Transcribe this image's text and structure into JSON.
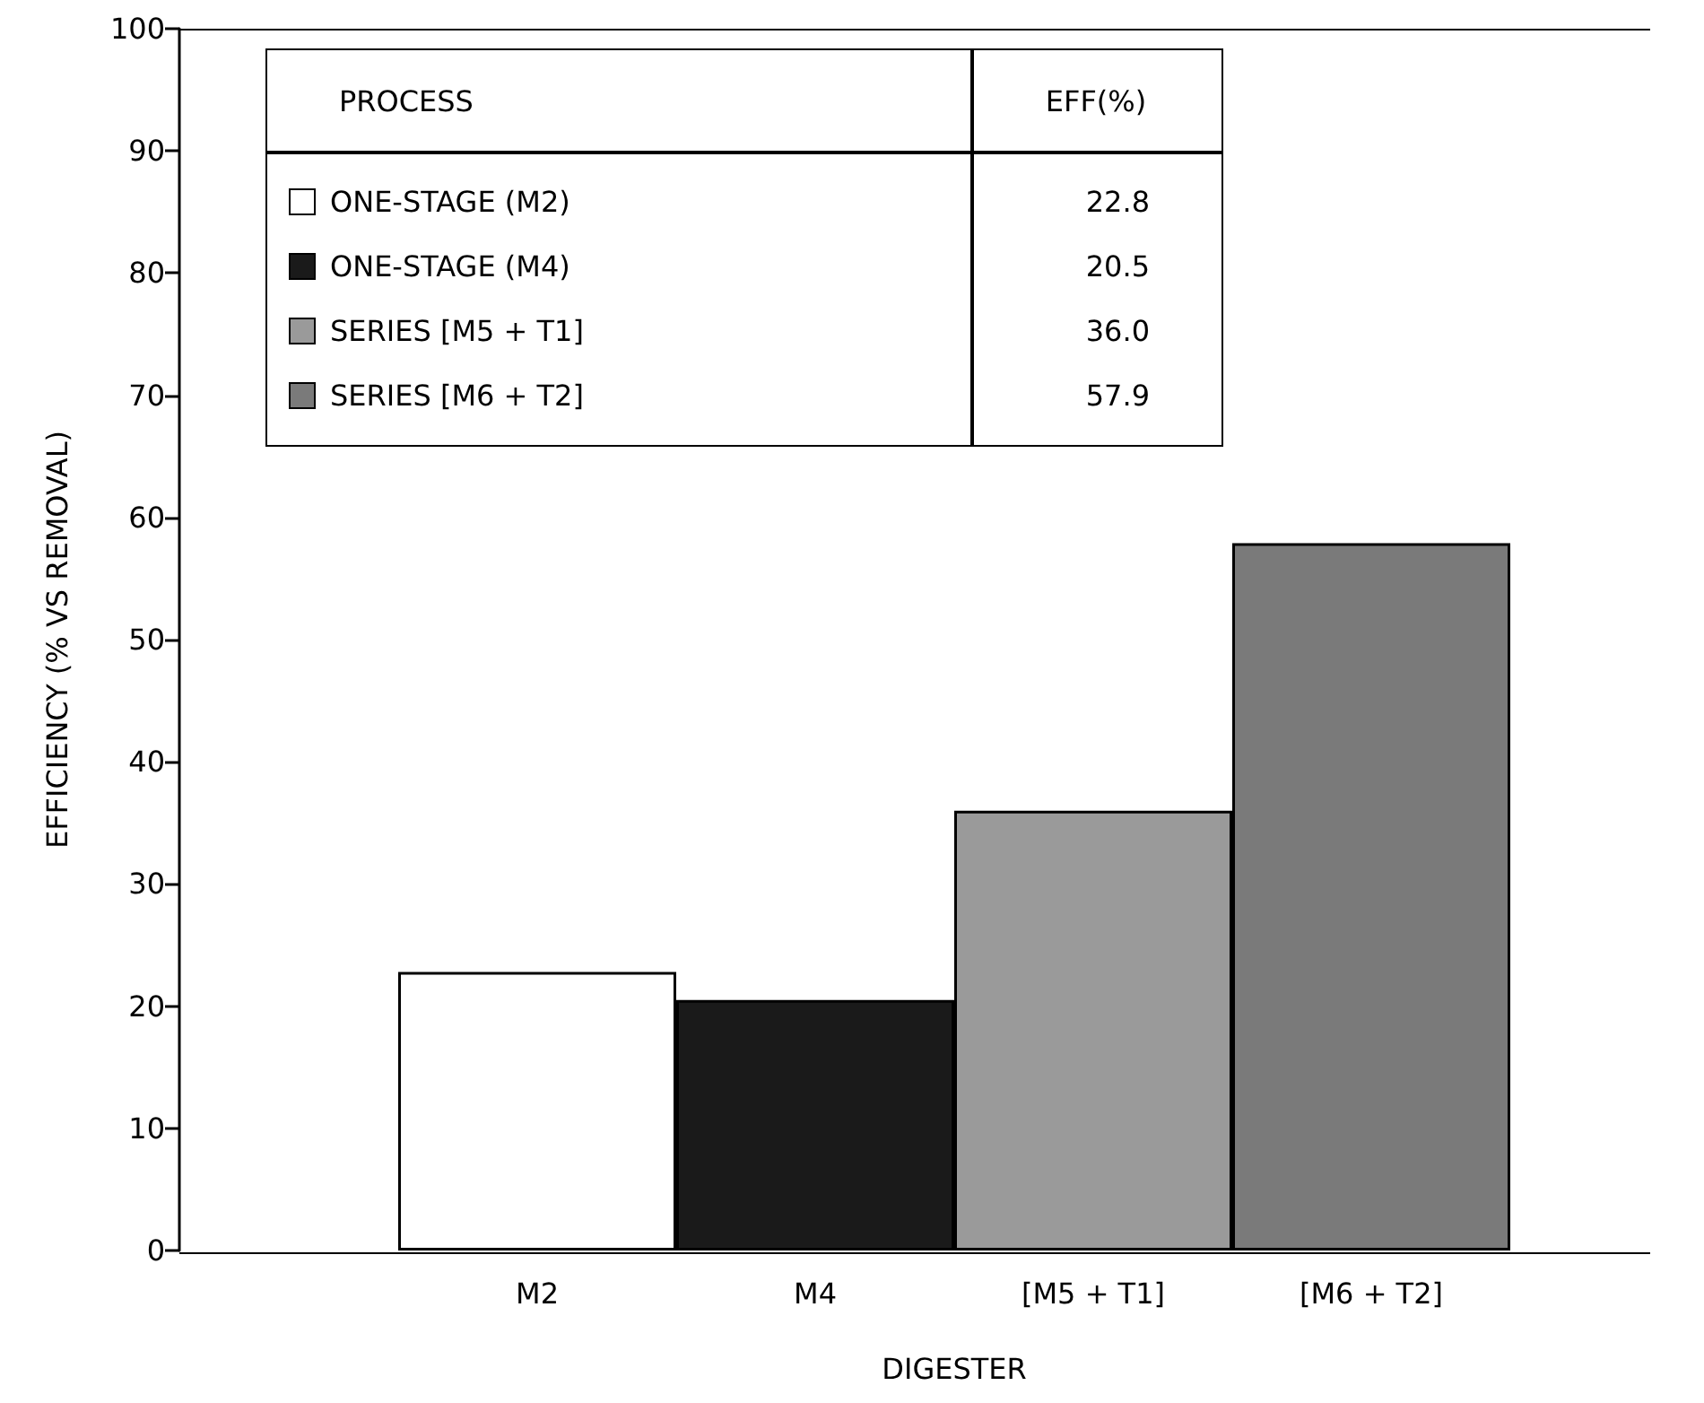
{
  "chart_data": {
    "type": "bar",
    "xlabel": "DIGESTER",
    "ylabel": "EFFICIENCY (% VS REMOVAL)",
    "categories": [
      "M2",
      "M4",
      "[M5 + T1]",
      "[M6 + T2]"
    ],
    "stacked": true,
    "series": [
      {
        "name": "ONE-STAGE (M2)",
        "color": "#ffffff",
        "values": [
          22.8,
          null,
          null,
          null
        ]
      },
      {
        "name": "ONE-STAGE (M4)",
        "color": "#1a1a1a",
        "values": [
          null,
          20.5,
          null,
          null
        ]
      },
      {
        "name": "SERIES [M5 + T1]",
        "color": "#9a9a9a",
        "values": [
          null,
          null,
          36.0,
          null
        ]
      },
      {
        "name": "SERIES [M6 + T2]",
        "color": "#7a7a7a",
        "values": [
          null,
          null,
          null,
          57.9
        ]
      }
    ],
    "ylim": [
      0,
      100
    ],
    "yticks": [
      0,
      10,
      20,
      30,
      40,
      50,
      60,
      70,
      80,
      90,
      100
    ],
    "grid": false,
    "legend": "top left",
    "legend_title": "PROCESS",
    "annotations": [
      "EFF(%)",
      "22.8",
      "20.5",
      "36.0",
      "57.9"
    ]
  }
}
